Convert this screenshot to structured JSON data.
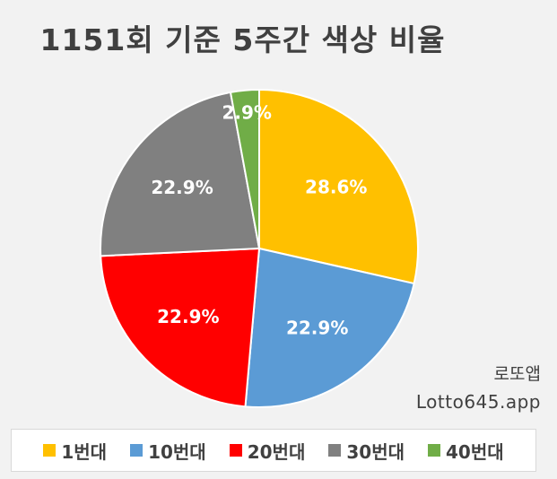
{
  "chart_data": {
    "type": "pie",
    "title": "1151회 기준 5주간 색상 비율",
    "categories": [
      "1번대",
      "10번대",
      "20번대",
      "30번대",
      "40번대"
    ],
    "values": [
      28.6,
      22.9,
      22.9,
      22.9,
      2.9
    ],
    "data_labels": [
      "28.6%",
      "22.9%",
      "22.9%",
      "22.9%",
      "2.9%"
    ],
    "colors": [
      "#FFC000",
      "#5B9BD5",
      "#FF0000",
      "#808080",
      "#70AD47"
    ],
    "legend": "bottom",
    "start_angle_deg": 0,
    "direction": "clockwise"
  },
  "watermark": {
    "line1": "로또앱",
    "line2": "Lotto645.app"
  }
}
